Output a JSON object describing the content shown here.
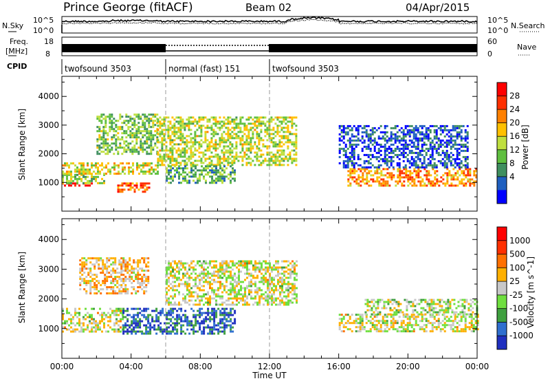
{
  "header": {
    "station": "Prince George (fitACF)",
    "beam": "Beam 02",
    "date": "04/Apr/2015"
  },
  "top_panels": {
    "nsky_label": "N.Sky",
    "nsky_ticks": [
      "10^5",
      "10^0"
    ],
    "nsearch_label": "N.Search",
    "nsearch_ticks": [
      "10^5",
      "10^0"
    ],
    "freq_label_line1": "Freq.",
    "freq_label_line2": "[MHz]",
    "freq_ticks": [
      "18",
      "8"
    ],
    "nave_label": "Nave",
    "nave_ticks": [
      "60",
      "0"
    ],
    "cpid_label": "CPID",
    "cpid_segments": [
      {
        "label": "twofsound 3503",
        "start_hour": 0,
        "end_hour": 6
      },
      {
        "label": "normal (fast) 151",
        "start_hour": 6,
        "end_hour": 12
      },
      {
        "label": "twofsound 3503",
        "start_hour": 12,
        "end_hour": 24
      }
    ]
  },
  "chart_data": [
    {
      "type": "heatmap",
      "name": "power",
      "ylabel": "Slant Range [km]",
      "yticks": [
        1000,
        2000,
        3000,
        4000
      ],
      "ylim": [
        0,
        4700
      ],
      "colorbar_label": "Power [dB]",
      "colorbar_ticks": [
        "28",
        "24",
        "20",
        "16",
        "12",
        "8",
        "4"
      ],
      "colors": [
        "#0000ff",
        "#1f5fbf",
        "#3f8f5f",
        "#5fbf3f",
        "#bfdf3f",
        "#ffc000",
        "#ff8000",
        "#ff3000",
        "#ff0000"
      ],
      "bands": [
        {
          "t0": 0.0,
          "t1": 2.0,
          "r0": 870,
          "r1": 1000,
          "level": 0.95
        },
        {
          "t0": 0.0,
          "t1": 2.5,
          "r0": 1000,
          "r1": 1300,
          "level": 0.45
        },
        {
          "t0": 0.0,
          "t1": 5.5,
          "r0": 1300,
          "r1": 1700,
          "level": 0.55
        },
        {
          "t0": 2.0,
          "t1": 5.5,
          "r0": 2000,
          "r1": 3400,
          "level": 0.4
        },
        {
          "t0": 3.2,
          "t1": 5.0,
          "r0": 700,
          "r1": 1000,
          "level": 0.8
        },
        {
          "t0": 5.5,
          "t1": 13.6,
          "r0": 1600,
          "r1": 3300,
          "level": 0.5
        },
        {
          "t0": 6.0,
          "t1": 10.0,
          "r0": 1000,
          "r1": 1600,
          "level": 0.35
        },
        {
          "t0": 16.5,
          "t1": 24.0,
          "r0": 880,
          "r1": 1500,
          "level": 0.7
        },
        {
          "t0": 16.0,
          "t1": 23.5,
          "r0": 1500,
          "r1": 3000,
          "level": 0.15
        }
      ]
    },
    {
      "type": "heatmap",
      "name": "velocity",
      "ylabel": "Slant Range [km]",
      "yticks": [
        1000,
        2000,
        3000,
        4000
      ],
      "ylim": [
        0,
        4700
      ],
      "colorbar_label": "Velocity [m s^-1]",
      "colorbar_ticks": [
        "1000",
        "500",
        "100",
        "25",
        "-25",
        "-100",
        "-500",
        "-1000"
      ],
      "colors": [
        "#1f2fbf",
        "#2f6fcf",
        "#3fa03f",
        "#6fdf3f",
        "#c8c8c8",
        "#ffb000",
        "#ff7000",
        "#ff3000",
        "#ff0000"
      ],
      "bands": [
        {
          "t0": 0.0,
          "t1": 3.5,
          "r0": 900,
          "r1": 1700,
          "level": 0.5
        },
        {
          "t0": 3.5,
          "t1": 10.0,
          "r0": 800,
          "r1": 1700,
          "level": 0.15
        },
        {
          "t0": 1.0,
          "t1": 5.0,
          "r0": 2200,
          "r1": 3400,
          "level": 0.6
        },
        {
          "t0": 6.0,
          "t1": 13.6,
          "r0": 1800,
          "r1": 3300,
          "level": 0.5
        },
        {
          "t0": 16.0,
          "t1": 24.0,
          "r0": 900,
          "r1": 1500,
          "level": 0.5
        },
        {
          "t0": 17.5,
          "t1": 24.0,
          "r0": 1500,
          "r1": 2000,
          "level": 0.45
        }
      ]
    }
  ],
  "x_axis": {
    "label": "Time UT",
    "ticks": [
      "00:00",
      "04:00",
      "08:00",
      "12:00",
      "16:00",
      "20:00",
      "00:00"
    ],
    "xlim": [
      0,
      24
    ]
  }
}
